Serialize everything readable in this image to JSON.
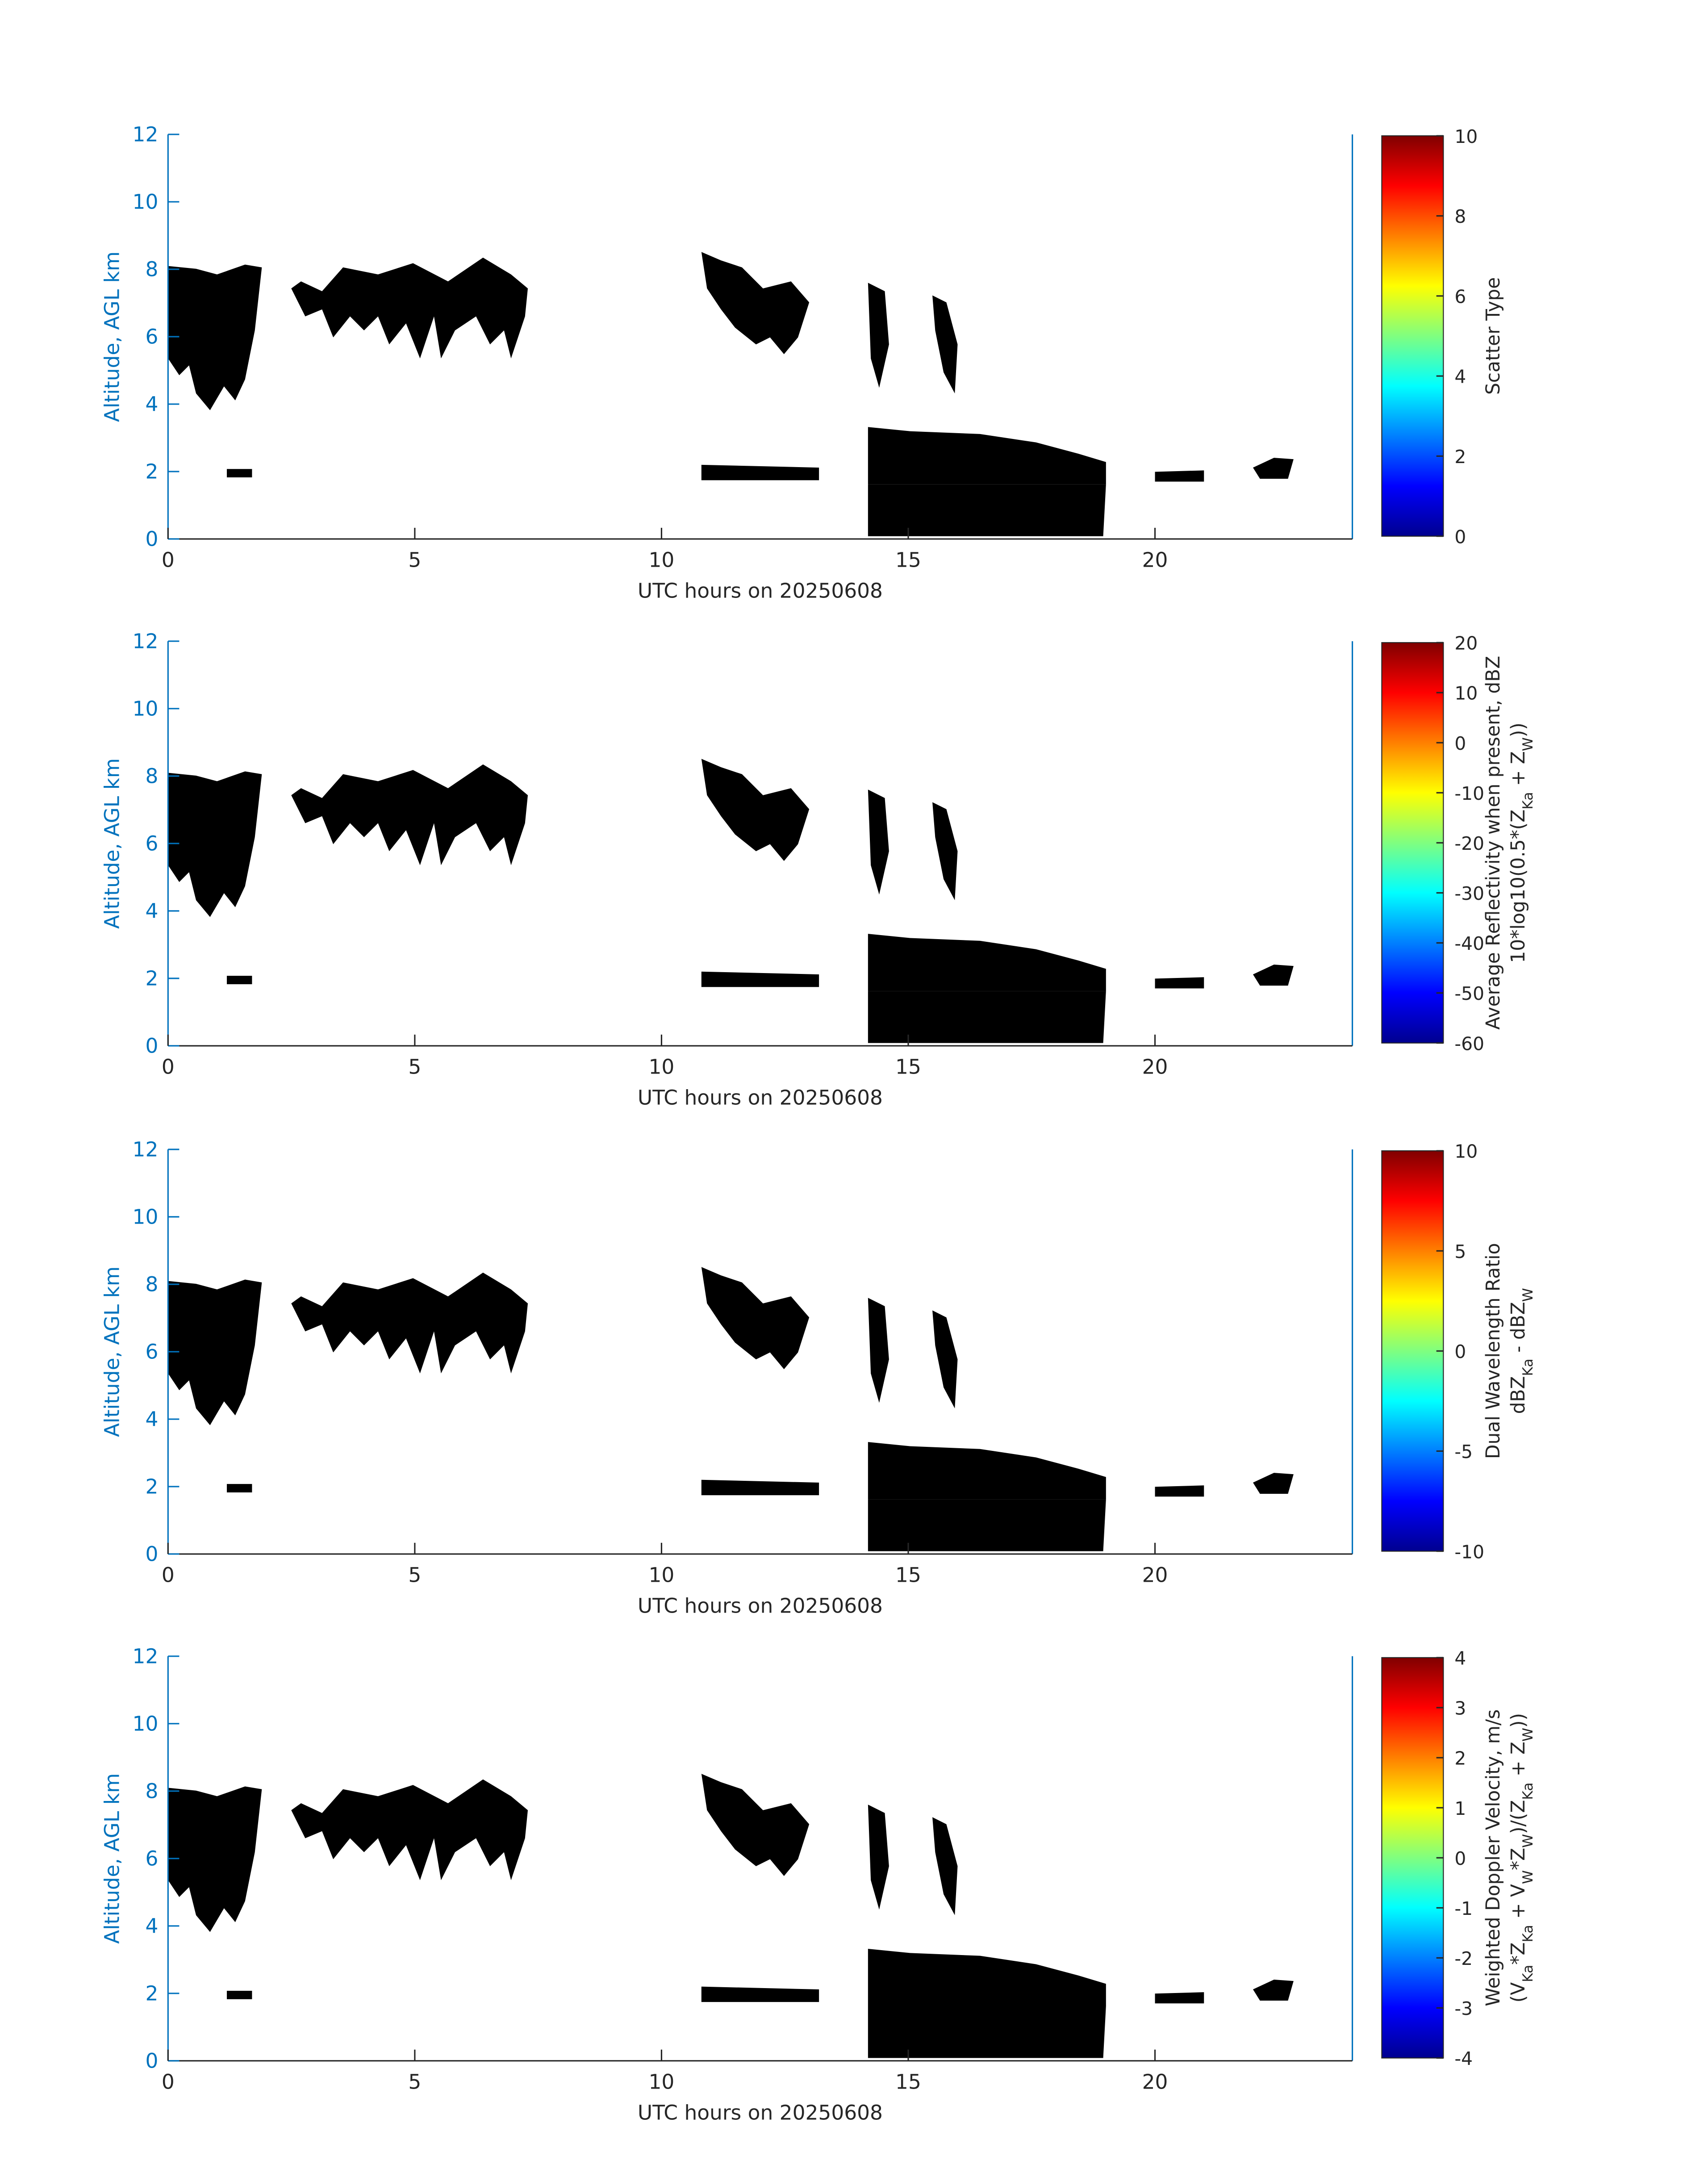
{
  "chart_data": [
    {
      "type": "heatmap",
      "xlabel": "UTC hours on 20250608",
      "ylabel": "Altitude, AGL km",
      "xlim": [
        0,
        24
      ],
      "xticks": [
        0,
        5,
        10,
        15,
        20
      ],
      "ylim": [
        0,
        12
      ],
      "yticks": [
        0,
        2,
        4,
        6,
        8,
        10,
        12
      ],
      "colorbar": {
        "colormap": "jet",
        "lim": [
          0,
          10
        ],
        "ticks": [
          0,
          2,
          4,
          6,
          8,
          10
        ],
        "label": [
          [
            {
              "text": "Scatter Type"
            }
          ]
        ]
      }
    },
    {
      "type": "heatmap",
      "xlabel": "UTC hours on 20250608",
      "ylabel": "Altitude, AGL km",
      "xlim": [
        0,
        24
      ],
      "xticks": [
        0,
        5,
        10,
        15,
        20
      ],
      "ylim": [
        0,
        12
      ],
      "yticks": [
        0,
        2,
        4,
        6,
        8,
        10,
        12
      ],
      "colorbar": {
        "colormap": "jet",
        "lim": [
          -60,
          20
        ],
        "ticks": [
          -60,
          -50,
          -40,
          -30,
          -20,
          -10,
          0,
          10,
          20
        ],
        "label": [
          [
            {
              "text": "Average Reflectivity when present, dBZ"
            }
          ],
          [
            {
              "text": "10*log10(0.5*(Z"
            },
            {
              "text": "Ka",
              "sub": true
            },
            {
              "text": " + Z"
            },
            {
              "text": "W",
              "sub": true
            },
            {
              "text": "))"
            }
          ]
        ]
      }
    },
    {
      "type": "heatmap",
      "xlabel": "UTC hours on 20250608",
      "ylabel": "Altitude, AGL km",
      "xlim": [
        0,
        24
      ],
      "xticks": [
        0,
        5,
        10,
        15,
        20
      ],
      "ylim": [
        0,
        12
      ],
      "yticks": [
        0,
        2,
        4,
        6,
        8,
        10,
        12
      ],
      "colorbar": {
        "colormap": "jet",
        "lim": [
          -10,
          10
        ],
        "ticks": [
          -10,
          -5,
          0,
          5,
          10
        ],
        "label": [
          [
            {
              "text": "Dual Wavelength Ratio"
            }
          ],
          [
            {
              "text": "dBZ"
            },
            {
              "text": "Ka",
              "sub": true
            },
            {
              "text": " - dBZ"
            },
            {
              "text": "W",
              "sub": true
            }
          ]
        ]
      }
    },
    {
      "type": "heatmap",
      "xlabel": "UTC hours on 20250608",
      "ylabel": "Altitude, AGL km",
      "xlim": [
        0,
        24
      ],
      "xticks": [
        0,
        5,
        10,
        15,
        20
      ],
      "ylim": [
        0,
        12
      ],
      "yticks": [
        0,
        2,
        4,
        6,
        8,
        10,
        12
      ],
      "colorbar": {
        "colormap": "jet",
        "lim": [
          -4,
          4
        ],
        "ticks": [
          -4,
          -3,
          -2,
          -1,
          0,
          1,
          2,
          3,
          4
        ],
        "label": [
          [
            {
              "text": "Weighted Doppler Velocity, m/s"
            }
          ],
          [
            {
              "text": "(V"
            },
            {
              "text": "Ka",
              "sub": true
            },
            {
              "text": "*Z"
            },
            {
              "text": "Ka",
              "sub": true
            },
            {
              "text": " + V"
            },
            {
              "text": "W",
              "sub": true
            },
            {
              "text": "*Z"
            },
            {
              "text": "W",
              "sub": true
            },
            {
              "text": ")/(Z"
            },
            {
              "text": "Ka",
              "sub": true
            },
            {
              "text": " + Z"
            },
            {
              "text": "W",
              "sub": true
            },
            {
              "text": "))"
            }
          ]
        ]
      }
    }
  ]
}
